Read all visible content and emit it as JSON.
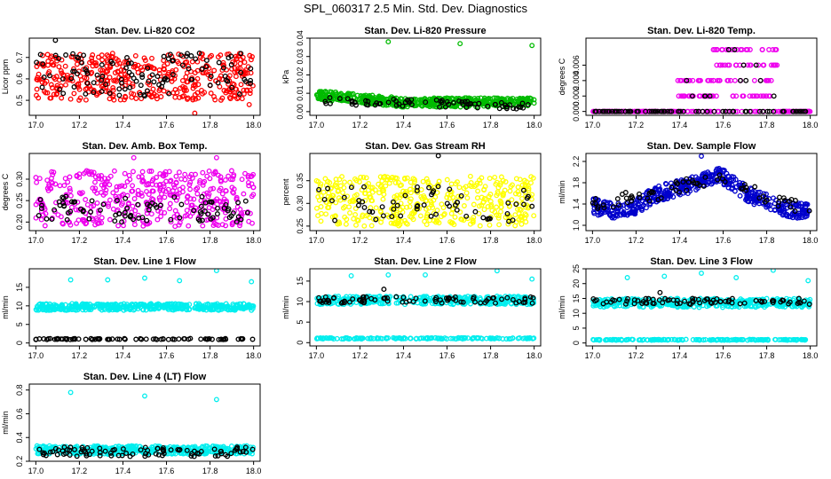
{
  "title": "SPL_060317  2.5 Min. Std. Dev. Diagnostics",
  "chart_data": [
    {
      "type": "scatter",
      "title": "Stan. Dev. Li-820 CO2",
      "ylabel": "Licor ppm",
      "color": "#ff0000",
      "xlim": [
        16.97,
        18.03
      ],
      "ylim": [
        0.43,
        0.79
      ],
      "xticks": [
        "17.0",
        "17.2",
        "17.4",
        "17.6",
        "17.8",
        "18.0"
      ],
      "xtick_values": [
        17.0,
        17.2,
        17.4,
        17.6,
        17.8,
        18.0
      ],
      "yticks": [
        "0.5",
        "0.6",
        "0.7"
      ],
      "ytick_values": [
        0.5,
        0.6,
        0.7
      ],
      "series": [
        {
          "color": "#ff0000",
          "x_range": [
            17.0,
            18.0
          ],
          "y_range": [
            0.5,
            0.72
          ],
          "n": 420
        },
        {
          "color": "#000000",
          "x_range": [
            17.0,
            18.0
          ],
          "y_range": [
            0.52,
            0.72
          ],
          "n": 110
        }
      ],
      "outliers": [
        {
          "x": 17.09,
          "y": 0.78,
          "color": "#000000"
        },
        {
          "x": 17.73,
          "y": 0.44,
          "color": "#ff0000"
        },
        {
          "x": 17.98,
          "y": 0.48,
          "color": "#ff0000"
        }
      ]
    },
    {
      "type": "scatter",
      "title": "Stan. Dev. Li-820 Pressure",
      "ylabel": "kPa",
      "color": "#00bb00",
      "xlim": [
        16.97,
        18.03
      ],
      "ylim": [
        -0.002,
        0.04
      ],
      "xticks": [
        "17.0",
        "17.2",
        "17.4",
        "17.6",
        "17.8",
        "18.0"
      ],
      "xtick_values": [
        17.0,
        17.2,
        17.4,
        17.6,
        17.8,
        18.0
      ],
      "yticks": [
        "0.00",
        "0.01",
        "0.02",
        "0.03",
        "0.04"
      ],
      "ytick_values": [
        0,
        0.01,
        0.02,
        0.03,
        0.04
      ],
      "series": [
        {
          "color": "#00bb00",
          "x_range": [
            17.0,
            18.0
          ],
          "y_trend": [
            [
              17.0,
              0.009
            ],
            [
              17.4,
              0.005
            ],
            [
              18.0,
              0.005
            ]
          ],
          "spread": 0.0025,
          "n": 520
        },
        {
          "color": "#000000",
          "x_range": [
            17.0,
            18.0
          ],
          "y_trend": [
            [
              17.0,
              0.006
            ],
            [
              18.0,
              0.003
            ]
          ],
          "spread": 0.002,
          "n": 70
        }
      ],
      "outliers": [
        {
          "x": 17.33,
          "y": 0.038,
          "color": "#00bb00"
        },
        {
          "x": 17.66,
          "y": 0.037,
          "color": "#00bb00"
        },
        {
          "x": 17.99,
          "y": 0.036,
          "color": "#00bb00"
        }
      ]
    },
    {
      "type": "scatter",
      "title": "Stan. Dev. Li-820 Temp.",
      "ylabel": "degrees C",
      "color": "#ee00ee",
      "xlim": [
        16.97,
        18.03
      ],
      "ylim": [
        -0.0005,
        0.0095
      ],
      "xticks": [
        "17.0",
        "17.2",
        "17.4",
        "17.6",
        "17.8",
        "18.0"
      ],
      "xtick_values": [
        17.0,
        17.2,
        17.4,
        17.6,
        17.8,
        18.0
      ],
      "yticks": [
        "0.000",
        "0.002",
        "0.004",
        "0.006"
      ],
      "ytick_values": [
        0,
        0.002,
        0.004,
        0.006
      ],
      "levels": [
        0,
        0.002,
        0.004,
        0.006,
        0.008
      ],
      "series": [
        {
          "color": "#ee00ee",
          "note": "quantized levels",
          "n": 360
        },
        {
          "color": "#000000",
          "n": 90
        }
      ]
    },
    {
      "type": "scatter",
      "title": "Stan. Dev. Amb. Box Temp.",
      "ylabel": "degrees C",
      "color": "#ee00ee",
      "xlim": [
        16.97,
        18.03
      ],
      "ylim": [
        0.18,
        0.36
      ],
      "xticks": [
        "17.0",
        "17.2",
        "17.4",
        "17.6",
        "17.8",
        "18.0"
      ],
      "xtick_values": [
        17.0,
        17.2,
        17.4,
        17.6,
        17.8,
        18.0
      ],
      "yticks": [
        "0.20",
        "0.25",
        "0.30"
      ],
      "ytick_values": [
        0.2,
        0.25,
        0.3
      ],
      "series": [
        {
          "color": "#ee00ee",
          "x_range": [
            17.0,
            18.0
          ],
          "y_range": [
            0.19,
            0.32
          ],
          "n": 430
        },
        {
          "color": "#000000",
          "x_range": [
            17.0,
            18.0
          ],
          "y_range": [
            0.2,
            0.26
          ],
          "n": 90
        }
      ],
      "outliers": [
        {
          "x": 17.45,
          "y": 0.35,
          "color": "#ee00ee"
        },
        {
          "x": 17.83,
          "y": 0.35,
          "color": "#ee00ee"
        }
      ]
    },
    {
      "type": "scatter",
      "title": "Stan. Dev. Gas Stream RH",
      "ylabel": "percent",
      "color": "#ffff00",
      "xlim": [
        16.97,
        18.03
      ],
      "ylim": [
        0.24,
        0.41
      ],
      "xticks": [
        "17.0",
        "17.2",
        "17.4",
        "17.6",
        "17.8",
        "18.0"
      ],
      "xtick_values": [
        17.0,
        17.2,
        17.4,
        17.6,
        17.8,
        18.0
      ],
      "yticks": [
        "0.25",
        "0.30",
        "0.35"
      ],
      "ytick_values": [
        0.25,
        0.3,
        0.35
      ],
      "series": [
        {
          "color": "#ffff00",
          "x_range": [
            17.0,
            18.0
          ],
          "y_range": [
            0.25,
            0.36
          ],
          "n": 430
        },
        {
          "color": "#000000",
          "x_range": [
            17.0,
            18.0
          ],
          "y_range": [
            0.26,
            0.34
          ],
          "n": 60
        }
      ],
      "outliers": [
        {
          "x": 17.56,
          "y": 0.405,
          "color": "#000000"
        }
      ]
    },
    {
      "type": "scatter",
      "title": "Stan. Dev. Sample Flow",
      "ylabel": "ml/min",
      "color": "#0000cc",
      "xlim": [
        16.97,
        18.03
      ],
      "ylim": [
        0.9,
        2.35
      ],
      "xticks": [
        "17.0",
        "17.2",
        "17.4",
        "17.6",
        "17.8",
        "18.0"
      ],
      "xtick_values": [
        17.0,
        17.2,
        17.4,
        17.6,
        17.8,
        18.0
      ],
      "yticks": [
        "1.0",
        "1.4",
        "1.8",
        "2.2"
      ],
      "ytick_values": [
        1.0,
        1.4,
        1.8,
        2.2
      ],
      "series": [
        {
          "color": "#0000cc",
          "x_range": [
            17.0,
            18.0
          ],
          "y_trend": [
            [
              17.0,
              1.35
            ],
            [
              17.15,
              1.25
            ],
            [
              17.3,
              1.6
            ],
            [
              17.45,
              1.75
            ],
            [
              17.58,
              1.95
            ],
            [
              17.75,
              1.5
            ],
            [
              17.9,
              1.3
            ],
            [
              18.0,
              1.25
            ]
          ],
          "spread": 0.15,
          "n": 460
        },
        {
          "color": "#000000",
          "x_range": [
            17.0,
            18.0
          ],
          "y_trend": [
            [
              17.0,
              1.4
            ],
            [
              17.3,
              1.6
            ],
            [
              17.6,
              1.95
            ],
            [
              17.8,
              1.5
            ],
            [
              18.0,
              1.3
            ]
          ],
          "spread": 0.12,
          "n": 70
        }
      ],
      "outliers": [
        {
          "x": 17.5,
          "y": 2.3,
          "color": "#0000cc"
        }
      ]
    },
    {
      "type": "scatter",
      "title": "Stan. Dev. Line 1 Flow",
      "ylabel": "ml/min",
      "color": "#00eeee",
      "xlim": [
        16.97,
        18.03
      ],
      "ylim": [
        -0.8,
        20
      ],
      "xticks": [
        "17.0",
        "17.2",
        "17.4",
        "17.6",
        "17.8",
        "18.0"
      ],
      "xtick_values": [
        17.0,
        17.2,
        17.4,
        17.6,
        17.8,
        18.0
      ],
      "yticks": [
        "0",
        "5",
        "10",
        "15"
      ],
      "ytick_values": [
        0,
        5,
        10,
        15
      ],
      "series": [
        {
          "color": "#00eeee",
          "x_range": [
            17.0,
            18.0
          ],
          "y_range": [
            8.8,
            10.6
          ],
          "n": 420
        },
        {
          "color": "#000000",
          "x_range": [
            17.0,
            18.0
          ],
          "y_range": [
            0.9,
            1.2
          ],
          "n": 80
        }
      ],
      "outliers": [
        {
          "x": 17.16,
          "y": 17,
          "color": "#00eeee"
        },
        {
          "x": 17.33,
          "y": 17,
          "color": "#00eeee"
        },
        {
          "x": 17.5,
          "y": 17.5,
          "color": "#00eeee"
        },
        {
          "x": 17.66,
          "y": 16.8,
          "color": "#00eeee"
        },
        {
          "x": 17.83,
          "y": 19.5,
          "color": "#00eeee"
        },
        {
          "x": 17.99,
          "y": 16.5,
          "color": "#00eeee"
        }
      ]
    },
    {
      "type": "scatter",
      "title": "Stan. Dev. Line 2 Flow",
      "ylabel": "ml/min",
      "color": "#00eeee",
      "xlim": [
        16.97,
        18.03
      ],
      "ylim": [
        -0.8,
        18
      ],
      "xticks": [
        "17.0",
        "17.2",
        "17.4",
        "17.6",
        "17.8",
        "18.0"
      ],
      "xtick_values": [
        17.0,
        17.2,
        17.4,
        17.6,
        17.8,
        18.0
      ],
      "yticks": [
        "0",
        "5",
        "10",
        "15"
      ],
      "ytick_values": [
        0,
        5,
        10,
        15
      ],
      "series": [
        {
          "color": "#00eeee",
          "x_range": [
            17.0,
            18.0
          ],
          "y_range": [
            9.3,
            11.3
          ],
          "n": 380
        },
        {
          "color": "#00eeee",
          "x_range": [
            17.0,
            18.0
          ],
          "y_range": [
            0.9,
            1.2
          ],
          "n": 160
        },
        {
          "color": "#000000",
          "x_range": [
            17.0,
            18.0
          ],
          "y_range": [
            9.6,
            11.2
          ],
          "n": 80
        }
      ],
      "outliers": [
        {
          "x": 17.16,
          "y": 16.3,
          "color": "#00eeee"
        },
        {
          "x": 17.33,
          "y": 16.5,
          "color": "#00eeee"
        },
        {
          "x": 17.5,
          "y": 16.5,
          "color": "#00eeee"
        },
        {
          "x": 17.83,
          "y": 17.5,
          "color": "#00eeee"
        },
        {
          "x": 17.99,
          "y": 15.5,
          "color": "#00eeee"
        },
        {
          "x": 17.31,
          "y": 13,
          "color": "#000000"
        }
      ]
    },
    {
      "type": "scatter",
      "title": "Stan. Dev. Line 3 Flow",
      "ylabel": "ml/min",
      "color": "#00eeee",
      "xlim": [
        16.97,
        18.03
      ],
      "ylim": [
        -1,
        25
      ],
      "xticks": [
        "17.0",
        "17.2",
        "17.4",
        "17.6",
        "17.8",
        "18.0"
      ],
      "xtick_values": [
        17.0,
        17.2,
        17.4,
        17.6,
        17.8,
        18.0
      ],
      "yticks": [
        "0",
        "5",
        "10",
        "15",
        "20",
        "25"
      ],
      "ytick_values": [
        0,
        5,
        10,
        15,
        20,
        25
      ],
      "series": [
        {
          "color": "#00eeee",
          "x_range": [
            17.0,
            18.0
          ],
          "y_range": [
            12,
            15
          ],
          "n": 380
        },
        {
          "color": "#00eeee",
          "x_range": [
            17.0,
            18.0
          ],
          "y_range": [
            0.9,
            1.2
          ],
          "n": 160
        },
        {
          "color": "#000000",
          "x_range": [
            17.0,
            18.0
          ],
          "y_range": [
            13,
            15
          ],
          "n": 80
        }
      ],
      "outliers": [
        {
          "x": 17.16,
          "y": 22,
          "color": "#00eeee"
        },
        {
          "x": 17.33,
          "y": 22.5,
          "color": "#00eeee"
        },
        {
          "x": 17.5,
          "y": 23.5,
          "color": "#00eeee"
        },
        {
          "x": 17.66,
          "y": 22,
          "color": "#00eeee"
        },
        {
          "x": 17.83,
          "y": 24.5,
          "color": "#00eeee"
        },
        {
          "x": 17.99,
          "y": 21,
          "color": "#00eeee"
        },
        {
          "x": 17.31,
          "y": 17,
          "color": "#000000"
        }
      ]
    },
    {
      "type": "scatter",
      "title": "Stan. Dev. Line 4 (LT) Flow",
      "ylabel": "ml/min",
      "color": "#00eeee",
      "xlim": [
        16.97,
        18.03
      ],
      "ylim": [
        0.2,
        0.85
      ],
      "xticks": [
        "17.0",
        "17.2",
        "17.4",
        "17.6",
        "17.8",
        "18.0"
      ],
      "xtick_values": [
        17.0,
        17.2,
        17.4,
        17.6,
        17.8,
        18.0
      ],
      "yticks": [
        "0.2",
        "0.4",
        "0.6",
        "0.8"
      ],
      "ytick_values": [
        0.2,
        0.4,
        0.6,
        0.8
      ],
      "series": [
        {
          "color": "#00eeee",
          "x_range": [
            17.0,
            18.0
          ],
          "y_range": [
            0.26,
            0.33
          ],
          "n": 440
        },
        {
          "color": "#000000",
          "x_range": [
            17.0,
            18.0
          ],
          "y_range": [
            0.24,
            0.32
          ],
          "n": 90
        }
      ],
      "outliers": [
        {
          "x": 17.16,
          "y": 0.78,
          "color": "#00eeee"
        },
        {
          "x": 17.5,
          "y": 0.75,
          "color": "#00eeee"
        },
        {
          "x": 17.83,
          "y": 0.72,
          "color": "#00eeee"
        }
      ]
    }
  ]
}
